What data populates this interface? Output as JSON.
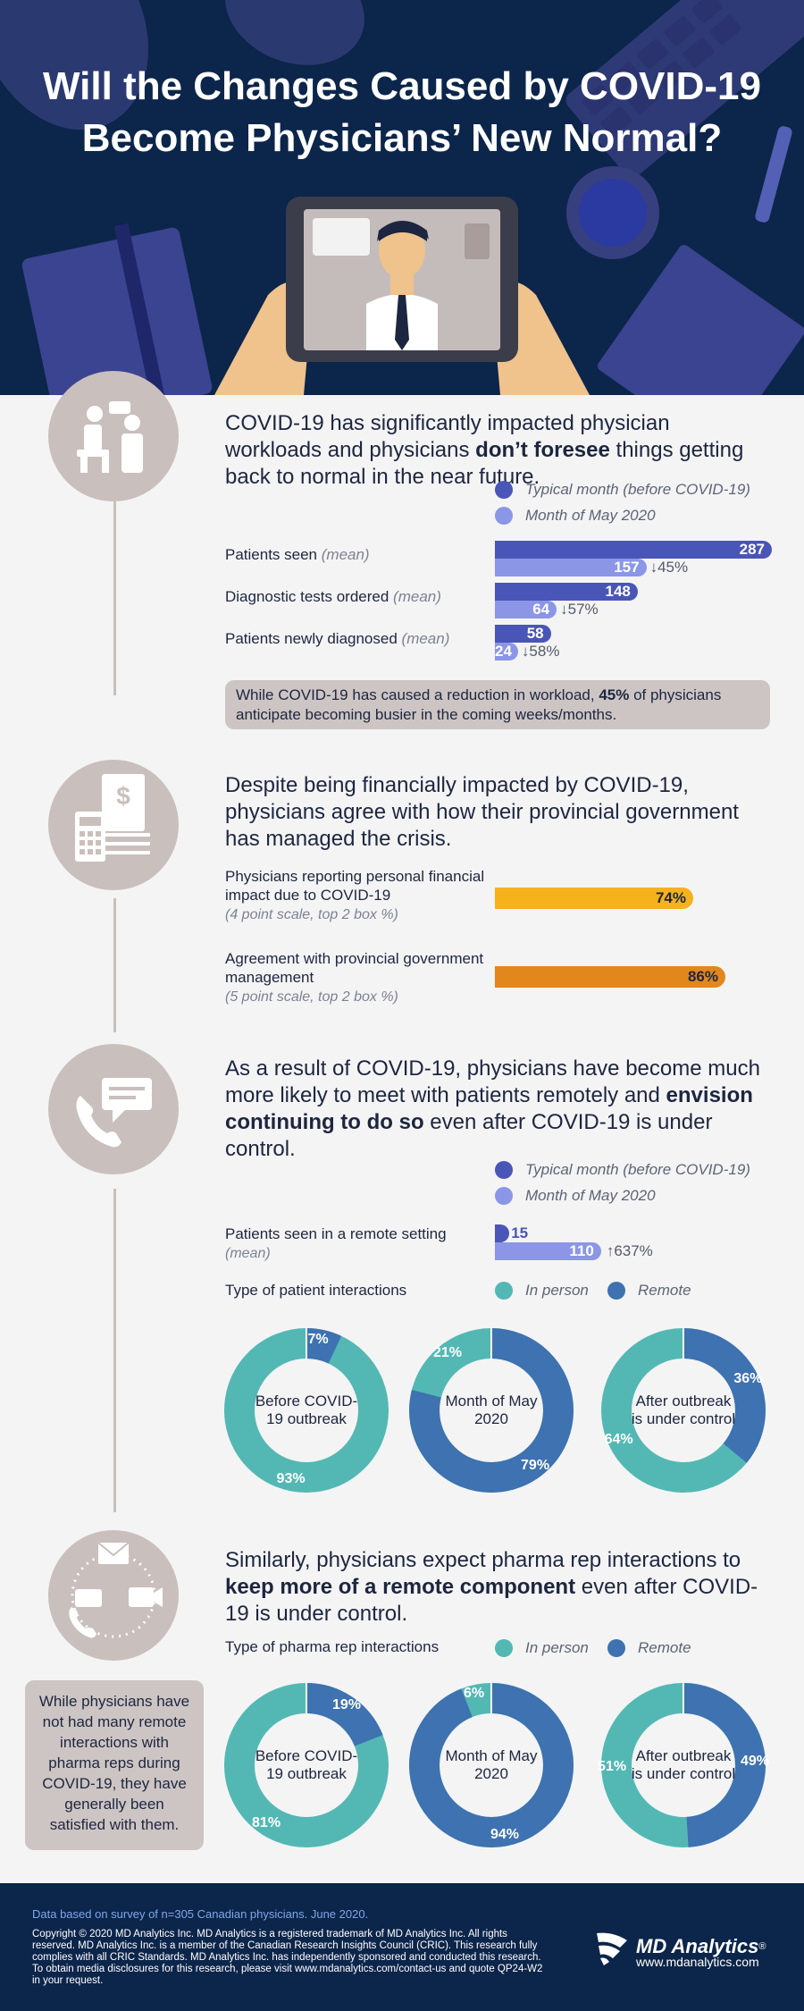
{
  "title_line1": "Will the Changes Caused by COVID-19",
  "title_line2": "Become Physicians’ New Normal?",
  "colors": {
    "navy": "#0c254a",
    "typical": "#4a55b8",
    "may": "#8b96e6",
    "yellow": "#f5b21b",
    "orange": "#e2871c",
    "inperson": "#53b8b4",
    "remote": "#3e72b0",
    "beige": "#c9bfbc"
  },
  "icons": {
    "s1": "doctor-patient-icon",
    "s2": "finance-document-icon",
    "s3": "phone-chat-icon",
    "s4": "remote-communication-icon"
  },
  "s1": {
    "text_a": "COVID-19 has significantly impacted physician workloads and physicians ",
    "text_bold": "don’t foresee",
    "text_b": " things getting back to normal in the near future.",
    "legend_typical": "Typical month (before COVID-19)",
    "legend_may": "Month of May 2020",
    "rows": [
      {
        "label": "Patients seen",
        "note": "(mean)",
        "typical": 287,
        "may": 157,
        "change": "↓45%"
      },
      {
        "label": "Diagnostic tests ordered",
        "note": "(mean)",
        "typical": 148,
        "may": 64,
        "change": "↓57%"
      },
      {
        "label": "Patients newly diagnosed",
        "note": "(mean)",
        "typical": 58,
        "may": 24,
        "change": "↓58%"
      }
    ],
    "callout_a": "While COVID-19 has caused a reduction in workload, ",
    "callout_bold": "45%",
    "callout_b": " of physicians anticipate becoming busier in the coming weeks/months."
  },
  "s2": {
    "text": "Despite being financially impacted by COVID-19, physicians agree with how their provincial government has managed the crisis.",
    "row1_label": "Physicians reporting personal financial impact due to COVID-19",
    "row1_note": "(4 point scale, top 2 box %)",
    "row1_value": "74%",
    "row1_pct": 74,
    "row2_label": "Agreement with provincial government management",
    "row2_note": "(5 point scale, top 2 box %)",
    "row2_value": "86%",
    "row2_pct": 86
  },
  "s3": {
    "text_a": "As a result of COVID-19, physicians have become much more likely to meet with patients remotely and ",
    "text_bold": "envision continuing to do so",
    "text_b": " even after COVID-19 is under control.",
    "legend_typical": "Typical month (before COVID-19)",
    "legend_may": "Month of May 2020",
    "remote_label": "Patients seen in a remote setting",
    "remote_note": "(mean)",
    "remote_typical": 15,
    "remote_may": 110,
    "remote_change": "↑637%",
    "interactions_label": "Type of patient interactions",
    "legend_inperson": "In person",
    "legend_remote": "Remote",
    "donuts": [
      {
        "label": "Before COVID-19 outbreak",
        "inperson": 93,
        "remote": 7,
        "inperson_label": "93%",
        "remote_label": "7%"
      },
      {
        "label": "Month of May 2020",
        "inperson": 21,
        "remote": 79,
        "inperson_label": "21%",
        "remote_label": "79%"
      },
      {
        "label": "After outbreak is under control",
        "inperson": 64,
        "remote": 36,
        "inperson_label": "64%",
        "remote_label": "36%"
      }
    ]
  },
  "s4": {
    "text_a": "Similarly, physicians expect pharma rep interactions to ",
    "text_bold": "keep more of a remote component",
    "text_b": " even after COVID-19 is under control.",
    "interactions_label": "Type of pharma rep interactions",
    "legend_inperson": "In person",
    "legend_remote": "Remote",
    "side_note": "While physicians have not had many remote interactions with pharma reps during COVID-19, they have generally been satisfied with them.",
    "donuts": [
      {
        "label": "Before COVID-19 outbreak",
        "inperson": 81,
        "remote": 19,
        "inperson_label": "81%",
        "remote_label": "19%"
      },
      {
        "label": "Month of May 2020",
        "inperson": 6,
        "remote": 94,
        "inperson_label": "6%",
        "remote_label": "94%"
      },
      {
        "label": "After outbreak is under control",
        "inperson": 51,
        "remote": 49,
        "inperson_label": "51%",
        "remote_label": "49%"
      }
    ]
  },
  "footer": {
    "survey": "Data based on survey of n=305 Canadian physicians. June 2020.",
    "copyright": "Copyright © 2020 MD Analytics Inc. MD Analytics is a registered trademark of MD Analytics Inc. All rights reserved. MD Analytics Inc. is a member of the Canadian Research Insights Council (CRIC). This research fully complies with all CRIC Standards. MD Analytics Inc. has independently sponsored and conducted this research. To obtain media disclosures for this research, please visit www.mdanalytics.com/contact-us and quote QP24-W2 in your request.",
    "brand": "MD Analytics",
    "reg": "®",
    "url": "www.mdanalytics.com"
  }
}
